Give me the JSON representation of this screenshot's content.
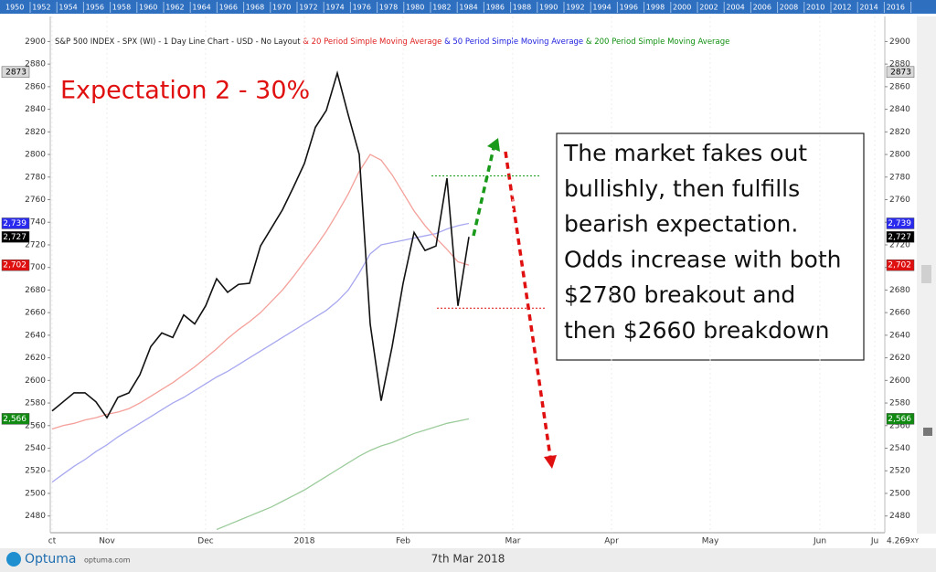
{
  "chart_data": {
    "type": "line",
    "timeline_years": [
      "1950",
      "1952",
      "1954",
      "1956",
      "1958",
      "1960",
      "1962",
      "1964",
      "1966",
      "1968",
      "1970",
      "1972",
      "1974",
      "1976",
      "1978",
      "1980",
      "1982",
      "1984",
      "1986",
      "1988",
      "1990",
      "1992",
      "1994",
      "1996",
      "1998",
      "2000",
      "2002",
      "2004",
      "2006",
      "2008",
      "2010",
      "2012",
      "2014",
      "2016"
    ],
    "annotation": "Expectation 2 - 30%",
    "note_lines": [
      "The market fakes out",
      "bullishly, then fulfills",
      "bearish expectation.",
      "Odds increase with both",
      "$2780 breakout and",
      "then $2660 breakdown"
    ],
    "categories": [
      "ct",
      null,
      null,
      null,
      null,
      "Nov",
      null,
      null,
      null,
      null,
      null,
      null,
      null,
      null,
      "Dec",
      null,
      null,
      null,
      null,
      null,
      null,
      null,
      null,
      "2018",
      null,
      null,
      null,
      null,
      null,
      null,
      null,
      null,
      "Feb",
      null,
      null,
      null,
      null,
      null,
      null,
      null,
      null,
      null,
      "Mar",
      null,
      null,
      null,
      null,
      null,
      null,
      null,
      null,
      "Apr",
      null,
      null,
      null,
      null,
      null,
      null,
      null,
      null,
      "May",
      null,
      null,
      null,
      null,
      null,
      null,
      null,
      null,
      null,
      "Jun",
      null,
      null,
      null,
      null,
      "Ju"
    ],
    "series": [
      {
        "name": "S&P 500 INDEX - SPX (WI) - 1 Day Line Chart - USD - No Layout",
        "color": "#111111",
        "values": [
          2573,
          2581,
          2589,
          2589,
          2581,
          2567,
          2585,
          2589,
          2605,
          2630,
          2642,
          2638,
          2658,
          2650,
          2666,
          2690,
          2678,
          2685,
          2686,
          2719,
          2735,
          2751,
          2771,
          2792,
          2824,
          2839,
          2872,
          2835,
          2800,
          2650,
          2582,
          2630,
          2686,
          2731,
          2715,
          2719,
          2779,
          2666,
          2727,
          null,
          null,
          null,
          null,
          null,
          null,
          null,
          null,
          null,
          null,
          null,
          null,
          null,
          null,
          null,
          null,
          null,
          null,
          null,
          null,
          null,
          null,
          null,
          null,
          null,
          null,
          null,
          null,
          null,
          null,
          null,
          null,
          null,
          null,
          null,
          null,
          null
        ]
      },
      {
        "name": "& 20 Period Simple Moving Average",
        "color": "#f4a09a",
        "values": [
          2557,
          2560,
          2562,
          2565,
          2567,
          2570,
          2572,
          2575,
          2580,
          2586,
          2592,
          2598,
          2605,
          2612,
          2620,
          2628,
          2637,
          2645,
          2652,
          2660,
          2670,
          2680,
          2692,
          2705,
          2718,
          2732,
          2748,
          2765,
          2785,
          2800,
          2795,
          2782,
          2766,
          2750,
          2737,
          2726,
          2716,
          2705,
          2702,
          null,
          null,
          null,
          null,
          null,
          null,
          null,
          null,
          null,
          null,
          null,
          null,
          null,
          null,
          null,
          null,
          null,
          null,
          null,
          null,
          null,
          null,
          null,
          null,
          null,
          null,
          null,
          null,
          null,
          null,
          null,
          null,
          null,
          null,
          null,
          null,
          null
        ]
      },
      {
        "name": "& 50 Period Simple Moving Average",
        "color": "#a8a8f0",
        "values": [
          2510,
          2517,
          2524,
          2530,
          2537,
          2543,
          2550,
          2556,
          2562,
          2568,
          2574,
          2580,
          2585,
          2591,
          2597,
          2603,
          2608,
          2614,
          2620,
          2626,
          2632,
          2638,
          2644,
          2650,
          2656,
          2662,
          2670,
          2680,
          2695,
          2712,
          2720,
          2722,
          2724,
          2726,
          2728,
          2730,
          2734,
          2737,
          2739,
          null,
          null,
          null,
          null,
          null,
          null,
          null,
          null,
          null,
          null,
          null,
          null,
          null,
          null,
          null,
          null,
          null,
          null,
          null,
          null,
          null,
          null,
          null,
          null,
          null,
          null,
          null,
          null,
          null,
          null,
          null,
          null,
          null,
          null,
          null,
          null,
          null
        ]
      },
      {
        "name": "& 200 Period Simple Moving Average",
        "color": "#9ccc9c",
        "values": [
          null,
          null,
          null,
          null,
          null,
          null,
          null,
          null,
          null,
          null,
          null,
          null,
          null,
          null,
          null,
          2468,
          2472,
          2476,
          2480,
          2484,
          2488,
          2493,
          2498,
          2503,
          2509,
          2515,
          2521,
          2527,
          2533,
          2538,
          2542,
          2545,
          2549,
          2553,
          2556,
          2559,
          2562,
          2564,
          2566,
          null,
          null,
          null,
          null,
          null,
          null,
          null,
          null,
          null,
          null,
          null,
          null,
          null,
          null,
          null,
          null,
          null,
          null,
          null,
          null,
          null,
          null,
          null,
          null,
          null,
          null,
          null,
          null,
          null,
          null,
          null,
          null,
          null,
          null,
          null,
          null,
          null
        ]
      }
    ],
    "legend_colors": [
      "#222222",
      "#e02020",
      "#2020e0",
      "#109010"
    ],
    "ylim": [
      2466,
      2906
    ],
    "yticks": [
      2480,
      2500,
      2520,
      2540,
      2560,
      2580,
      2600,
      2620,
      2640,
      2660,
      2680,
      2700,
      2720,
      2740,
      2760,
      2780,
      2800,
      2820,
      2840,
      2860,
      2880,
      2900
    ],
    "badges": [
      {
        "value": 2873,
        "label": "2873",
        "color": "#d8d8d8",
        "text_color": "#000000"
      },
      {
        "value": 2739,
        "label": "2,739",
        "color": "#2a2aee",
        "text_color": "#ffffff"
      },
      {
        "value": 2727,
        "label": "2,727",
        "color": "#000000",
        "text_color": "#ffffff"
      },
      {
        "value": 2702,
        "label": "2,702",
        "color": "#e01010",
        "text_color": "#ffffff"
      },
      {
        "value": 2566,
        "label": "2,566",
        "color": "#108a10",
        "text_color": "#ffffff"
      }
    ],
    "levels": [
      {
        "value": 2781,
        "color": "#1a9a1a"
      },
      {
        "value": 2664,
        "color": "#e01010"
      }
    ],
    "footer": {
      "logo": "Optuma",
      "site": "optuma.com",
      "date": "7th Mar 2018",
      "scale": "4.269",
      "mode": "XY"
    }
  }
}
